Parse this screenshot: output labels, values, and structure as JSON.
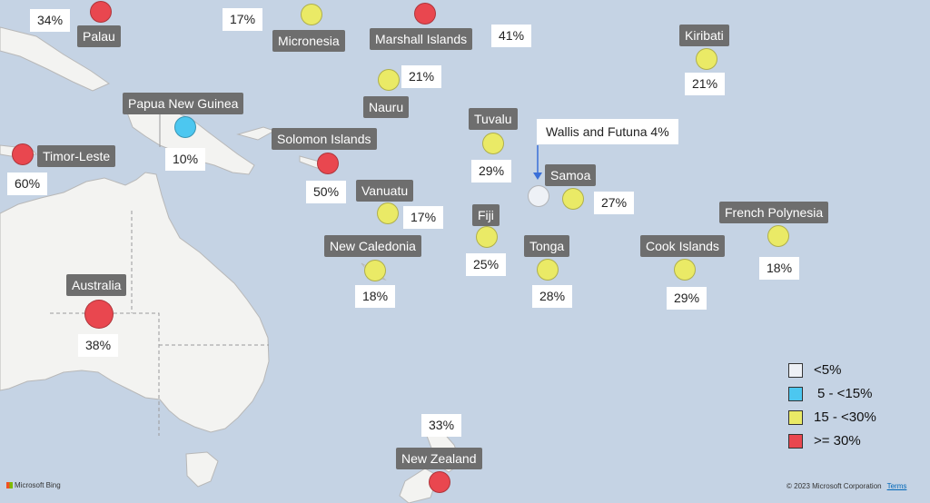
{
  "map": {
    "colors": {
      "ocean": "#c5d3e4",
      "land": "#f3f3f1",
      "border": "#9a9a9a",
      "under_5": "#eef1f6",
      "5_to_15": "#4cc7f0",
      "15_to_30": "#eaea66",
      "over_30": "#e9474f"
    },
    "countries": [
      {
        "name": "Palau",
        "value": "34%",
        "category": "over_30"
      },
      {
        "name": "Micronesia",
        "value": "17%",
        "category": "15_to_30"
      },
      {
        "name": "Marshall Islands",
        "value": "41%",
        "category": "over_30"
      },
      {
        "name": "Kiribati",
        "value": "21%",
        "category": "15_to_30"
      },
      {
        "name": "Nauru",
        "value": "21%",
        "category": "15_to_30"
      },
      {
        "name": "Papua New Guinea",
        "value": "10%",
        "category": "5_to_15"
      },
      {
        "name": "Solomon Islands",
        "value": "50%",
        "category": "over_30"
      },
      {
        "name": "Tuvalu",
        "value": "29%",
        "category": "15_to_30"
      },
      {
        "name": "Timor-Leste",
        "value": "60%",
        "category": "over_30"
      },
      {
        "name": "Samoa",
        "value": "27%",
        "category": "15_to_30"
      },
      {
        "name": "Vanuatu",
        "value": "17%",
        "category": "15_to_30"
      },
      {
        "name": "Fiji",
        "value": "25%",
        "category": "15_to_30"
      },
      {
        "name": "New Caledonia",
        "value": "18%",
        "category": "15_to_30"
      },
      {
        "name": "Tonga",
        "value": "28%",
        "category": "15_to_30"
      },
      {
        "name": "Cook Islands",
        "value": "29%",
        "category": "15_to_30"
      },
      {
        "name": "French Polynesia",
        "value": "18%",
        "category": "15_to_30"
      },
      {
        "name": "Australia",
        "value": "38%",
        "category": "over_30"
      },
      {
        "name": "New Zealand",
        "value": "33%",
        "category": "over_30"
      }
    ],
    "callout": {
      "text": "Wallis and Futuna 4%",
      "category": "under_5"
    },
    "legend": [
      {
        "label": "<5%",
        "category": "under_5"
      },
      {
        "label": "5 - <15%",
        "category": "5_to_15"
      },
      {
        "label": "15 - <30%",
        "category": "15_to_30"
      },
      {
        "label": ">= 30%",
        "category": "over_30"
      }
    ],
    "attribution": {
      "logo_text": "Microsoft Bing",
      "copyright": "© 2023 Microsoft Corporation",
      "terms": "Terms"
    }
  }
}
